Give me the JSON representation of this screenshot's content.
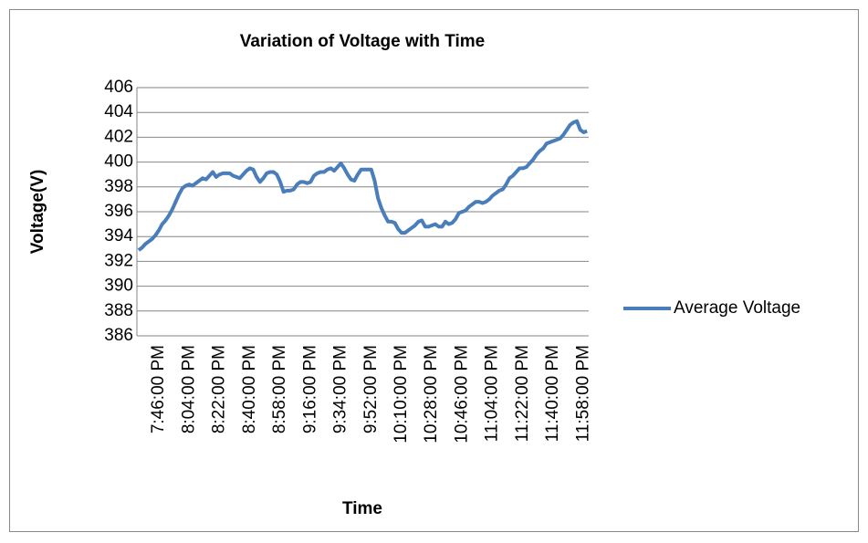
{
  "chart_data": {
    "type": "line",
    "title": "Variation of Voltage with Time",
    "x_label": "Time",
    "y_label": "Voltage(V)",
    "categories": [
      null,
      null,
      null,
      null,
      null,
      null,
      "7:46:00 PM",
      null,
      null,
      null,
      null,
      null,
      null,
      null,
      null,
      "8:04:00 PM",
      null,
      null,
      null,
      null,
      null,
      null,
      null,
      null,
      "8:22:00 PM",
      null,
      null,
      null,
      null,
      null,
      null,
      null,
      null,
      "8:40:00 PM",
      null,
      null,
      null,
      null,
      null,
      null,
      null,
      null,
      "8:58:00 PM",
      null,
      null,
      null,
      null,
      null,
      null,
      null,
      null,
      "9:16:00 PM",
      null,
      null,
      null,
      null,
      null,
      null,
      null,
      null,
      "9:34:00 PM",
      null,
      null,
      null,
      null,
      null,
      null,
      null,
      null,
      "9:52:00 PM",
      null,
      null,
      null,
      null,
      null,
      null,
      null,
      null,
      "10:10:00 PM",
      null,
      null,
      null,
      null,
      null,
      null,
      null,
      null,
      "10:28:00 PM",
      null,
      null,
      null,
      null,
      null,
      null,
      null,
      null,
      "10:46:00 PM",
      null,
      null,
      null,
      null,
      null,
      null,
      null,
      null,
      "11:04:00 PM",
      null,
      null,
      null,
      null,
      null,
      null,
      null,
      null,
      "11:22:00 PM",
      null,
      null,
      null,
      null,
      null,
      null,
      null,
      null,
      "11:40:00 PM",
      null,
      null,
      null,
      null,
      null,
      null,
      null,
      null,
      "11:58:00 PM",
      null
    ],
    "series": [
      {
        "name": "Average Voltage",
        "color": "#4a7ebb",
        "values": [
          392.9,
          393.1,
          393.4,
          393.6,
          393.8,
          394.1,
          394.5,
          395.0,
          395.3,
          395.7,
          396.2,
          396.8,
          397.4,
          397.9,
          398.1,
          398.2,
          398.1,
          398.3,
          398.5,
          398.7,
          398.6,
          398.9,
          399.2,
          398.8,
          399.0,
          399.1,
          399.1,
          399.1,
          398.9,
          398.8,
          398.7,
          399.0,
          399.3,
          399.5,
          399.4,
          398.8,
          398.4,
          398.7,
          399.1,
          399.2,
          399.2,
          399.0,
          398.4,
          397.6,
          397.7,
          397.7,
          397.8,
          398.2,
          398.4,
          398.4,
          398.3,
          398.4,
          398.9,
          399.1,
          399.2,
          399.2,
          399.4,
          399.5,
          399.3,
          399.6,
          399.9,
          399.5,
          399.0,
          398.6,
          398.5,
          399.0,
          399.4,
          399.4,
          399.4,
          399.4,
          398.5,
          397.1,
          396.3,
          395.7,
          395.2,
          395.2,
          395.1,
          394.6,
          394.3,
          394.3,
          394.5,
          394.7,
          394.9,
          395.2,
          395.3,
          394.8,
          394.8,
          394.9,
          395.0,
          394.8,
          394.8,
          395.2,
          395.0,
          395.1,
          395.4,
          395.9,
          396.0,
          396.1,
          396.4,
          396.6,
          396.8,
          396.8,
          396.7,
          396.8,
          397.0,
          397.3,
          397.5,
          397.7,
          397.8,
          398.2,
          398.7,
          398.9,
          399.2,
          399.5,
          399.5,
          399.6,
          399.9,
          400.2,
          400.6,
          400.9,
          401.1,
          401.5,
          401.6,
          401.7,
          401.8,
          401.9,
          402.2,
          402.6,
          403.0,
          403.2,
          403.3,
          402.6,
          402.4,
          402.5
        ]
      }
    ],
    "ylim": [
      386,
      406
    ],
    "yticks": [
      386,
      388,
      390,
      392,
      394,
      396,
      398,
      400,
      402,
      404,
      406
    ],
    "grid": true,
    "legend": "right"
  }
}
